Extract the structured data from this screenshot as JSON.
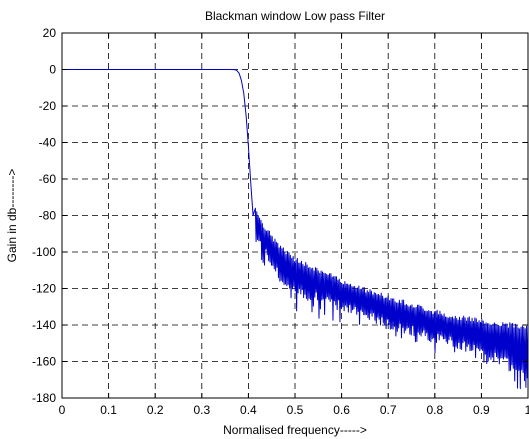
{
  "chart_data": {
    "type": "line",
    "title": "Blackman window Low pass Filter",
    "xlabel": "Normalised frequency----->",
    "ylabel": "Gain in db-------->",
    "xlim": [
      0,
      1
    ],
    "ylim": [
      -180,
      20
    ],
    "x_ticks": [
      0,
      0.1,
      0.2,
      0.3,
      0.4,
      0.5,
      0.6,
      0.7,
      0.8,
      0.9,
      1
    ],
    "x_tick_labels": [
      "0",
      "0.1",
      "0.2",
      "0.3",
      "0.4",
      "0.5",
      "0.6",
      "0.7",
      "0.8",
      "0.9",
      "1"
    ],
    "y_ticks": [
      20,
      0,
      -20,
      -40,
      -60,
      -80,
      -100,
      -120,
      -140,
      -160,
      -180
    ],
    "y_tick_labels": [
      "20",
      "0",
      "-20",
      "-40",
      "-60",
      "-80",
      "-100",
      "-120",
      "-140",
      "-160",
      "-180"
    ],
    "grid": true,
    "grid_style": "dashed",
    "line_color": "#0000cc",
    "series": [
      {
        "x": [
          0,
          0.1,
          0.2,
          0.3,
          0.36,
          0.37,
          0.375,
          0.38,
          0.385,
          0.39,
          0.395,
          0.4,
          0.405,
          0.41
        ],
        "values": [
          0,
          0,
          0,
          0,
          0,
          -0.1,
          -0.5,
          -2,
          -6,
          -13,
          -25,
          -42,
          -62,
          -80
        ]
      }
    ],
    "sidelobes": {
      "x": [
        0.415,
        0.42,
        0.425,
        0.43,
        0.44,
        0.45,
        0.46,
        0.48,
        0.5,
        0.55,
        0.6,
        0.65,
        0.7,
        0.75,
        0.8,
        0.85,
        0.9,
        0.95,
        1.0
      ],
      "peak_db": [
        -76,
        -78,
        -82,
        -85,
        -88,
        -92,
        -95,
        -100,
        -104,
        -110,
        -116,
        -121,
        -125,
        -129,
        -133,
        -136,
        -138,
        -140,
        -141
      ],
      "notch_db": [
        -92,
        -94,
        -96,
        -100,
        -102,
        -106,
        -110,
        -120,
        -122,
        -125,
        -130,
        -134,
        -140,
        -143,
        -147,
        -150,
        -155,
        -160,
        -170
      ]
    }
  }
}
